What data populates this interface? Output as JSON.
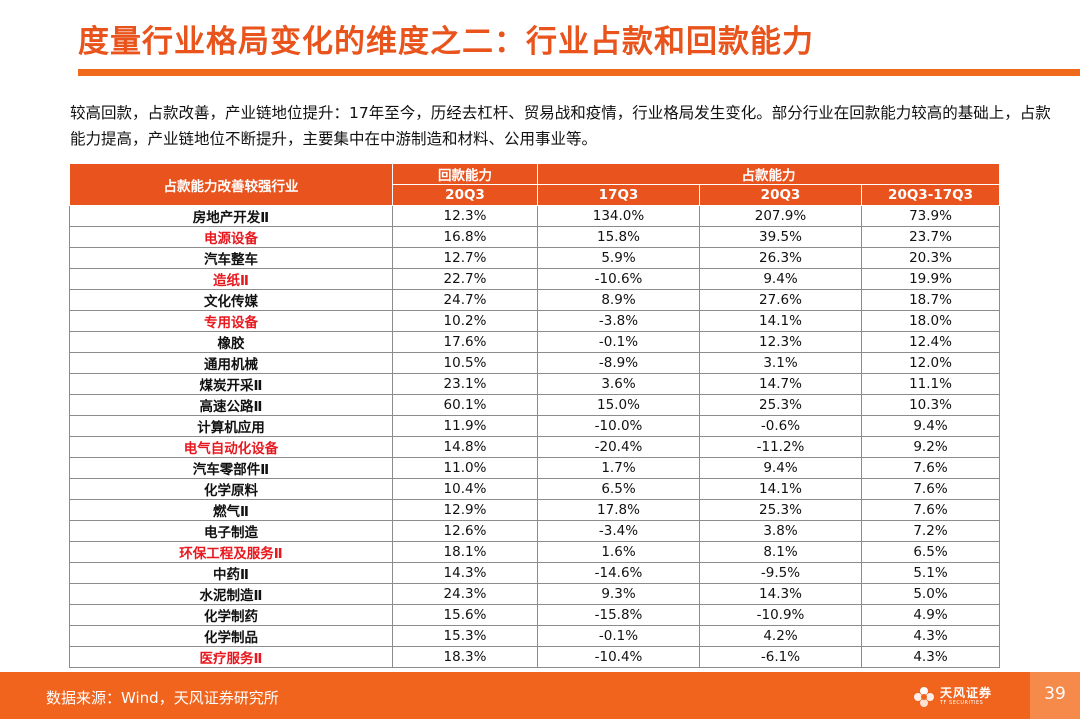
{
  "title": "度量行业格局变化的维度之二：行业占款和回款能力",
  "description": "较高回款，占款改善，产业链地位提升：17年至今，历经去杠杆、贸易战和疫情，行业格局发生变化。部分行业在回款能力较高的基础上，占款能力提高，产业链地位不断提升，主要集中在中游制造和材料、公用事业等。",
  "table": {
    "header_industry": "占款能力改善较强行业",
    "header_group_huikuan": "回款能力",
    "header_group_zhankuan": "占款能力",
    "sub_headers": [
      "20Q3",
      "17Q3",
      "20Q3",
      "20Q3-17Q3"
    ],
    "rows": [
      {
        "name": "房地产开发Ⅱ",
        "highlight": false,
        "hk_20q3": "12.3%",
        "zk_17q3": "134.0%",
        "zk_20q3": "207.9%",
        "zk_diff": "73.9%"
      },
      {
        "name": "电源设备",
        "highlight": true,
        "hk_20q3": "16.8%",
        "zk_17q3": "15.8%",
        "zk_20q3": "39.5%",
        "zk_diff": "23.7%"
      },
      {
        "name": "汽车整车",
        "highlight": false,
        "hk_20q3": "12.7%",
        "zk_17q3": "5.9%",
        "zk_20q3": "26.3%",
        "zk_diff": "20.3%"
      },
      {
        "name": "造纸Ⅱ",
        "highlight": true,
        "hk_20q3": "22.7%",
        "zk_17q3": "-10.6%",
        "zk_20q3": "9.4%",
        "zk_diff": "19.9%"
      },
      {
        "name": "文化传媒",
        "highlight": false,
        "hk_20q3": "24.7%",
        "zk_17q3": "8.9%",
        "zk_20q3": "27.6%",
        "zk_diff": "18.7%"
      },
      {
        "name": "专用设备",
        "highlight": true,
        "hk_20q3": "10.2%",
        "zk_17q3": "-3.8%",
        "zk_20q3": "14.1%",
        "zk_diff": "18.0%"
      },
      {
        "name": "橡胶",
        "highlight": false,
        "hk_20q3": "17.6%",
        "zk_17q3": "-0.1%",
        "zk_20q3": "12.3%",
        "zk_diff": "12.4%"
      },
      {
        "name": "通用机械",
        "highlight": false,
        "hk_20q3": "10.5%",
        "zk_17q3": "-8.9%",
        "zk_20q3": "3.1%",
        "zk_diff": "12.0%"
      },
      {
        "name": "煤炭开采Ⅱ",
        "highlight": false,
        "hk_20q3": "23.1%",
        "zk_17q3": "3.6%",
        "zk_20q3": "14.7%",
        "zk_diff": "11.1%"
      },
      {
        "name": "高速公路Ⅱ",
        "highlight": false,
        "hk_20q3": "60.1%",
        "zk_17q3": "15.0%",
        "zk_20q3": "25.3%",
        "zk_diff": "10.3%"
      },
      {
        "name": "计算机应用",
        "highlight": false,
        "hk_20q3": "11.9%",
        "zk_17q3": "-10.0%",
        "zk_20q3": "-0.6%",
        "zk_diff": "9.4%"
      },
      {
        "name": "电气自动化设备",
        "highlight": true,
        "hk_20q3": "14.8%",
        "zk_17q3": "-20.4%",
        "zk_20q3": "-11.2%",
        "zk_diff": "9.2%"
      },
      {
        "name": "汽车零部件Ⅱ",
        "highlight": false,
        "hk_20q3": "11.0%",
        "zk_17q3": "1.7%",
        "zk_20q3": "9.4%",
        "zk_diff": "7.6%"
      },
      {
        "name": "化学原料",
        "highlight": false,
        "hk_20q3": "10.4%",
        "zk_17q3": "6.5%",
        "zk_20q3": "14.1%",
        "zk_diff": "7.6%"
      },
      {
        "name": "燃气Ⅱ",
        "highlight": false,
        "hk_20q3": "12.9%",
        "zk_17q3": "17.8%",
        "zk_20q3": "25.3%",
        "zk_diff": "7.6%"
      },
      {
        "name": "电子制造",
        "highlight": false,
        "hk_20q3": "12.6%",
        "zk_17q3": "-3.4%",
        "zk_20q3": "3.8%",
        "zk_diff": "7.2%"
      },
      {
        "name": "环保工程及服务Ⅱ",
        "highlight": true,
        "hk_20q3": "18.1%",
        "zk_17q3": "1.6%",
        "zk_20q3": "8.1%",
        "zk_diff": "6.5%"
      },
      {
        "name": "中药Ⅱ",
        "highlight": false,
        "hk_20q3": "14.3%",
        "zk_17q3": "-14.6%",
        "zk_20q3": "-9.5%",
        "zk_diff": "5.1%"
      },
      {
        "name": "水泥制造Ⅱ",
        "highlight": false,
        "hk_20q3": "24.3%",
        "zk_17q3": "9.3%",
        "zk_20q3": "14.3%",
        "zk_diff": "5.0%"
      },
      {
        "name": "化学制药",
        "highlight": false,
        "hk_20q3": "15.6%",
        "zk_17q3": "-15.8%",
        "zk_20q3": "-10.9%",
        "zk_diff": "4.9%"
      },
      {
        "name": "化学制品",
        "highlight": false,
        "hk_20q3": "15.3%",
        "zk_17q3": "-0.1%",
        "zk_20q3": "4.2%",
        "zk_diff": "4.3%"
      },
      {
        "name": "医疗服务Ⅱ",
        "highlight": true,
        "hk_20q3": "18.3%",
        "zk_17q3": "-10.4%",
        "zk_20q3": "-6.1%",
        "zk_diff": "4.3%"
      }
    ]
  },
  "footer": {
    "source": "数据来源：Wind，天风证券研究所",
    "logo_text": "天风证券",
    "logo_sub": "TF SECURITIES",
    "page_number": "39"
  },
  "colors": {
    "brand_orange": "#e8541c",
    "header_fill": "#e8531e",
    "highlight_red": "#e8181f"
  }
}
